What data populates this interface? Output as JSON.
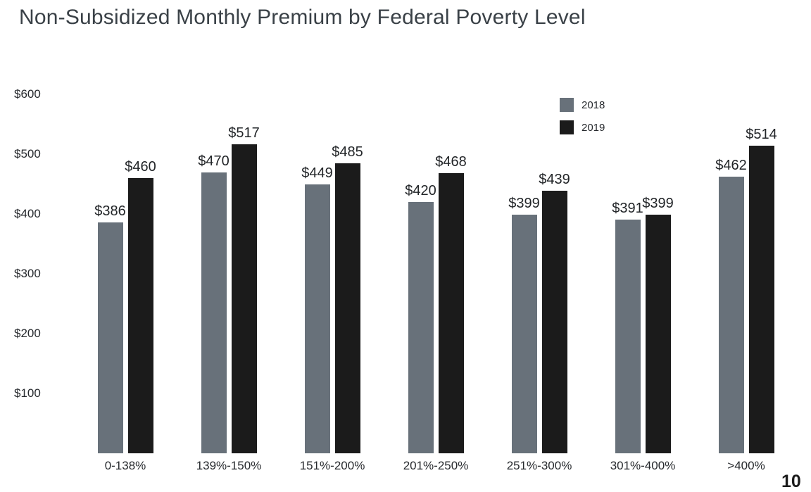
{
  "page": {
    "page_number": "10"
  },
  "chart_data": {
    "type": "bar",
    "title": "Non-Subsidized Monthly Premium by Federal Poverty Level",
    "categories": [
      "0-138%",
      "139%-150%",
      "151%-200%",
      "201%-250%",
      "251%-300%",
      "301%-400%",
      ">400%"
    ],
    "series": [
      {
        "name": "2018",
        "color": "#68717a",
        "values": [
          386,
          470,
          449,
          420,
          399,
          391,
          462
        ]
      },
      {
        "name": "2019",
        "color": "#1b1b1b",
        "values": [
          460,
          517,
          485,
          468,
          439,
          399,
          514
        ]
      }
    ],
    "value_prefix": "$",
    "y_ticks": [
      100,
      200,
      300,
      400,
      500,
      600
    ],
    "ylim": [
      0,
      600
    ],
    "xlabel": "",
    "ylabel": "",
    "grid": false,
    "legend_position": "top-right",
    "background": "#ffffff"
  }
}
